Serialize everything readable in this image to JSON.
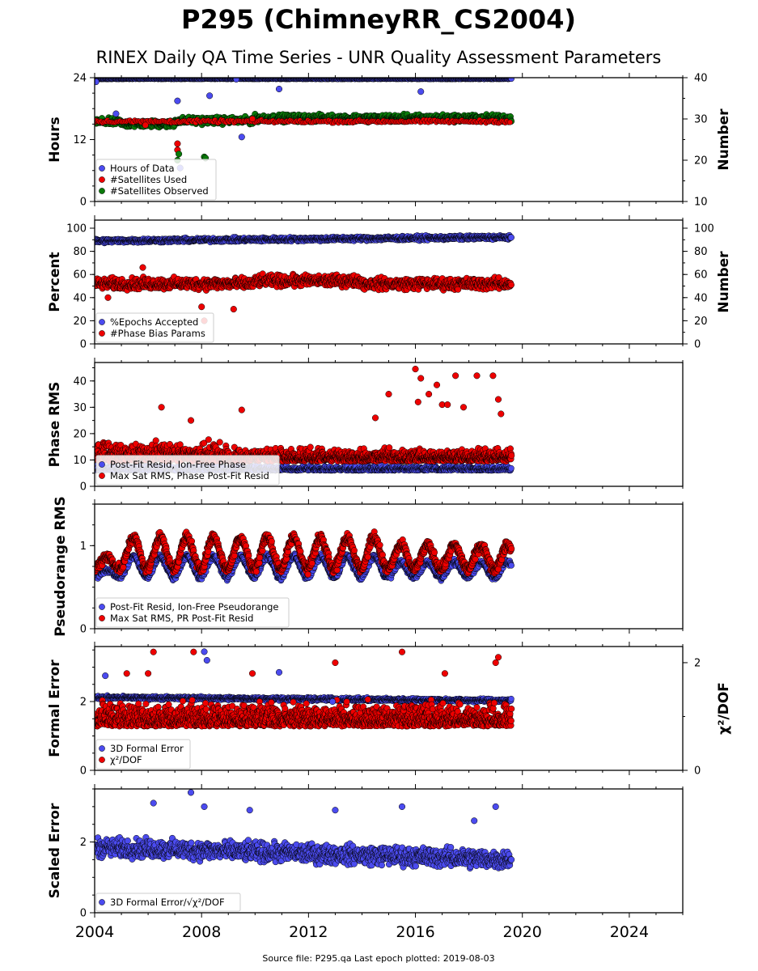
{
  "title": "P295 (ChimneyRR_CS2004)",
  "subtitle": "RINEX Daily QA Time Series - UNR Quality Assessment Parameters",
  "footer": "Source file: P295.qa Last epoch plotted: 2019-08-03",
  "colors": {
    "blue": "#4b4bef",
    "red": "#ee0000",
    "green": "#0a7a0a"
  },
  "chart_data": [
    {
      "type": "scatter",
      "panel": 1,
      "xlim": [
        2004,
        2026
      ],
      "x_ticks": [
        "2004",
        "2008",
        "2012",
        "2016",
        "2020",
        "2024"
      ],
      "ylabel": "Hours",
      "ylim": [
        0,
        24
      ],
      "y_ticks": [
        "0",
        "12",
        "24"
      ],
      "y2label": "Number",
      "y2lim": [
        10,
        40
      ],
      "y2_ticks": [
        "10",
        "20",
        "30",
        "40"
      ],
      "legend_position": "lower-left",
      "series": [
        {
          "name": "Hours of Data",
          "color": "blue",
          "axis": "left",
          "typical": 24,
          "points": [
            [
              2004.05,
              23.2
            ],
            [
              2004.8,
              17
            ],
            [
              2007.1,
              19.5
            ],
            [
              2007.2,
              6.5
            ],
            [
              2008.3,
              20.5
            ],
            [
              2009.5,
              12.5
            ],
            [
              2010.9,
              21.8
            ],
            [
              2016.2,
              21.3
            ],
            [
              2009.3,
              23.7
            ]
          ]
        },
        {
          "name": "#Satellites Used",
          "color": "red",
          "axis": "right",
          "typical": 29,
          "points": [
            [
              2007.1,
              24
            ],
            [
              2007.1,
              22.5
            ],
            [
              2005.9,
              28.5
            ],
            [
              2009.9,
              30
            ]
          ]
        },
        {
          "name": "#Satellites Observed",
          "color": "green",
          "axis": "right",
          "typical": 29.5,
          "points": [
            [
              2007.15,
              21.5
            ],
            [
              2007.1,
              20
            ],
            [
              2008.1,
              20.8
            ],
            [
              2008.15,
              20.5
            ]
          ]
        }
      ]
    },
    {
      "type": "scatter",
      "panel": 2,
      "xlim": [
        2004,
        2026
      ],
      "x_ticks": [
        "2004",
        "2008",
        "2012",
        "2016",
        "2020",
        "2024"
      ],
      "ylabel": "Percent",
      "ylim": [
        0,
        107
      ],
      "y_ticks": [
        "0",
        "20",
        "40",
        "60",
        "80",
        "100"
      ],
      "y2label": "Number",
      "y2lim": [
        0,
        107
      ],
      "y2_ticks": [
        "0",
        "20",
        "40",
        "60",
        "80",
        "100"
      ],
      "legend_position": "lower-left",
      "series": [
        {
          "name": "%Epochs Accepted",
          "color": "blue",
          "axis": "left",
          "typical": 90
        },
        {
          "name": "#Phase Bias Params",
          "color": "red",
          "axis": "right",
          "typical": 52,
          "points": [
            [
              2005.8,
              66
            ],
            [
              2008.0,
              32
            ],
            [
              2009.2,
              30
            ],
            [
              2008.1,
              20
            ],
            [
              2004.5,
              40
            ]
          ]
        }
      ]
    },
    {
      "type": "scatter",
      "panel": 3,
      "xlim": [
        2004,
        2026
      ],
      "x_ticks": [
        "2004",
        "2008",
        "2012",
        "2016",
        "2020",
        "2024"
      ],
      "ylabel": "Phase RMS",
      "ylim": [
        0,
        47
      ],
      "y_ticks": [
        "0",
        "10",
        "20",
        "30",
        "40"
      ],
      "legend_position": "lower-left",
      "series": [
        {
          "name": "Post-Fit Resid, Ion-Free Phase",
          "color": "blue",
          "typical": 6
        },
        {
          "name": "Max Sat RMS, Phase Post-Fit Resid",
          "color": "red",
          "typical": 10,
          "points": [
            [
              2016.0,
              44.5
            ],
            [
              2016.2,
              41
            ],
            [
              2016.8,
              38.5
            ],
            [
              2017.5,
              42
            ],
            [
              2018.3,
              42
            ],
            [
              2018.9,
              42
            ],
            [
              2015.0,
              35
            ],
            [
              2016.5,
              35
            ],
            [
              2017.0,
              31
            ],
            [
              2017.2,
              31
            ],
            [
              2016.1,
              32
            ],
            [
              2006.5,
              30
            ],
            [
              2007.6,
              25
            ],
            [
              2009.5,
              29
            ],
            [
              2014.5,
              26
            ],
            [
              2017.8,
              30
            ],
            [
              2019.1,
              33
            ],
            [
              2019.2,
              27.5
            ]
          ]
        }
      ]
    },
    {
      "type": "scatter",
      "panel": 4,
      "xlim": [
        2004,
        2026
      ],
      "x_ticks": [
        "2004",
        "2008",
        "2012",
        "2016",
        "2020",
        "2024"
      ],
      "ylabel": "Pseudorange RMS",
      "ylim": [
        0,
        1.5
      ],
      "y_ticks": [
        "0",
        "1"
      ],
      "legend_position": "lower-left",
      "series": [
        {
          "name": "Post-Fit Resid, Ion-Free Pseudorange",
          "color": "blue"
        },
        {
          "name": "Max Sat RMS, PR Post-Fit Resid",
          "color": "red"
        }
      ]
    },
    {
      "type": "scatter",
      "panel": 5,
      "xlim": [
        2004,
        2026
      ],
      "x_ticks": [
        "2004",
        "2008",
        "2012",
        "2016",
        "2020",
        "2024"
      ],
      "ylabel": "Formal Error",
      "ylim": [
        0,
        3.6
      ],
      "y_ticks": [
        "0",
        "2"
      ],
      "y2label": "χ²/DOF",
      "y2lim": [
        0,
        2.3
      ],
      "y2_ticks": [
        "0",
        "2"
      ],
      "legend_position": "lower-left",
      "series": [
        {
          "name": "3D Formal Error",
          "color": "blue",
          "axis": "left",
          "typical": 2.1,
          "points": [
            [
              2004.4,
              2.75
            ],
            [
              2008.1,
              3.45
            ],
            [
              2008.2,
              3.2
            ],
            [
              2010.9,
              2.85
            ],
            [
              2012.9,
              2.0
            ]
          ]
        },
        {
          "name": "χ²/DOF",
          "color": "red",
          "axis": "right",
          "typical": 0.8,
          "points": [
            [
              2006.2,
              2.2
            ],
            [
              2007.7,
              2.2
            ],
            [
              2015.5,
              2.2
            ],
            [
              2013.0,
              2.0
            ],
            [
              2019.0,
              2.0
            ],
            [
              2019.1,
              2.1
            ],
            [
              2017.1,
              1.8
            ],
            [
              2005.2,
              1.8
            ],
            [
              2006.0,
              1.8
            ],
            [
              2009.9,
              1.8
            ]
          ]
        }
      ]
    },
    {
      "type": "scatter",
      "panel": 6,
      "xlim": [
        2004,
        2026
      ],
      "x_ticks": [
        "2004",
        "2008",
        "2012",
        "2016",
        "2020",
        "2024"
      ],
      "ylabel": "Scaled Error",
      "ylim": [
        0,
        3.5
      ],
      "y_ticks": [
        "0",
        "2"
      ],
      "legend_position": "lower-left",
      "series": [
        {
          "name": "3D Formal Error/√χ²/DOF",
          "color": "blue",
          "typical": 1.7,
          "points": [
            [
              2007.6,
              3.4
            ],
            [
              2008.1,
              3.0
            ],
            [
              2006.2,
              3.1
            ],
            [
              2009.8,
              2.9
            ],
            [
              2013.0,
              2.9
            ],
            [
              2015.5,
              3.0
            ],
            [
              2019.0,
              3.0
            ],
            [
              2018.2,
              2.6
            ]
          ]
        }
      ]
    }
  ]
}
